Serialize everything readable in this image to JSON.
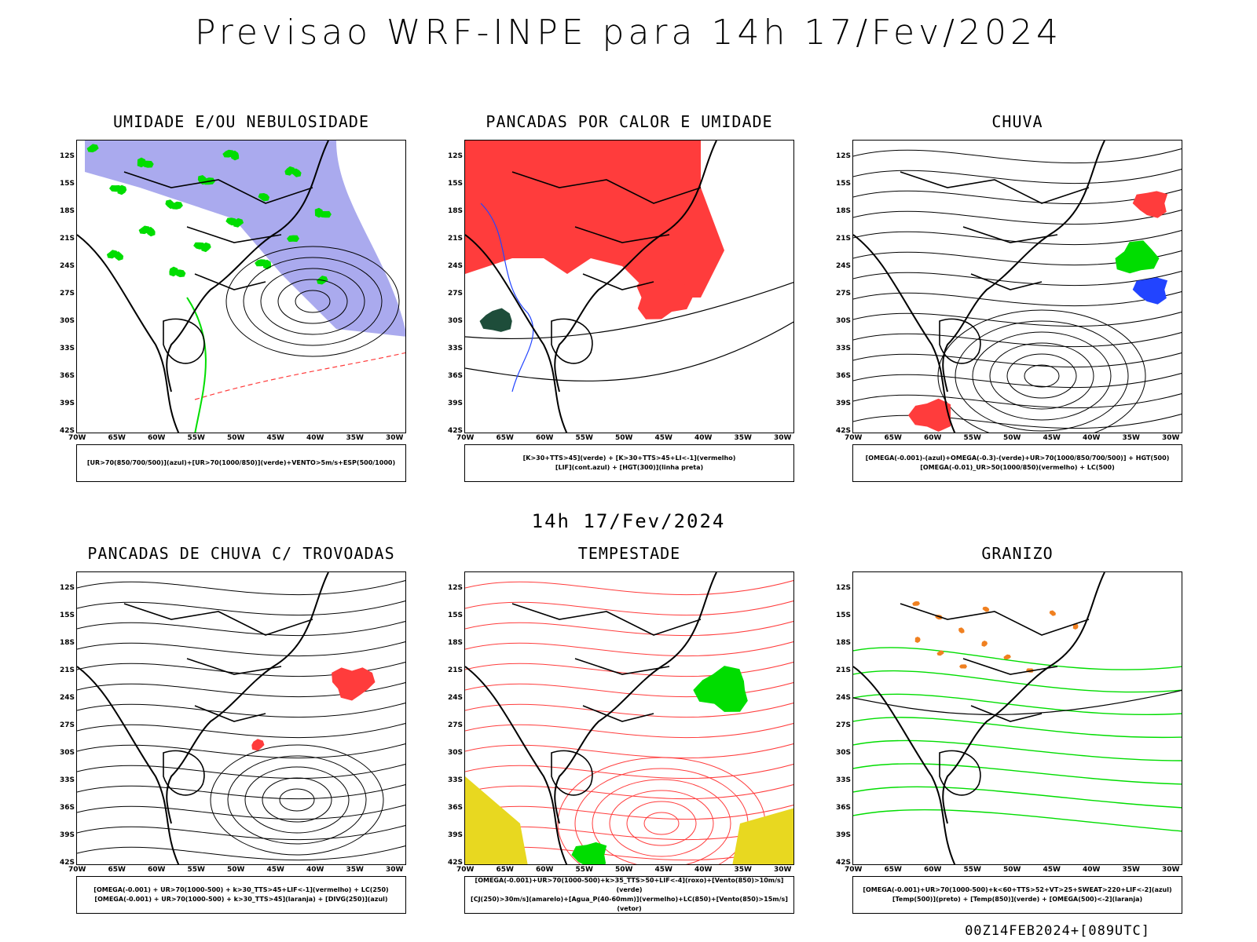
{
  "header": {
    "title": "Previsao WRF-INPE  para 14h 17/Fev/2024"
  },
  "mid_label": "14h 17/Fev/2024",
  "footer": "00Z14FEB2024+[089UTC]",
  "lat_labels": [
    "12S",
    "15S",
    "18S",
    "21S",
    "24S",
    "27S",
    "30S",
    "33S",
    "36S",
    "39S",
    "42S"
  ],
  "lon_labels": [
    "70W",
    "65W",
    "60W",
    "55W",
    "50W",
    "45W",
    "40W",
    "35W",
    "30W"
  ],
  "colors": {
    "blue_fill": "#aaaaee",
    "green": "#00dd00",
    "red": "#ff3c3c",
    "dark_green": "#1e4d3a",
    "yellow": "#e8d820",
    "orange": "#f08020"
  },
  "panels": [
    {
      "title": "UMIDADE E/OU NEBULOSIDADE",
      "caption": [
        "[UR>70(850/700/500)](azul)+[UR>70(1000/850)](verde)+VENTO>5m/s+ESP(500/1000)"
      ]
    },
    {
      "title": "PANCADAS POR CALOR E UMIDADE",
      "caption": [
        "[K>30+TTS>45](verde)  +  [K>30+TTS>45+LI<-1](vermelho)",
        "[LIF](cont.azul)  +  [HGT(300)](linha preta)"
      ]
    },
    {
      "title": "CHUVA",
      "caption": [
        "[OMEGA(-0.001)-(azul)+OMEGA(-0.3)-(verde)+UR>70(1000/850/700/500)]  +  HGT(500)",
        "[OMEGA(-0.01)_UR>50(1000/850)(vermelho)  +  LC(500)"
      ]
    },
    {
      "title": "PANCADAS DE CHUVA C/ TROVOADAS",
      "caption": [
        "[OMEGA(-0.001)  +  UR>70(1000-500)  +  k>30_TTS>45+LIF<-1](vermelho)  +  LC(250)",
        "[OMEGA(-0.001)  +  UR>70(1000-500)  +  k>30_TTS>45](laranja)  +  [DIVG(250)](azul)"
      ]
    },
    {
      "title": "TEMPESTADE",
      "caption": [
        "[OMEGA(-0.001)+UR>70(1000-500)+k>35_TTS>50+LIF<-4](roxo)+[Vento(850)>10m/s](verde)",
        "[CJ(250)>30m/s](amarelo)+[Agua_P(40-60mm)](vermelho)+LC(850)+[Vento(850)>15m/s](vetor)"
      ]
    },
    {
      "title": "GRANIZO",
      "caption": [
        "[OMEGA(-0.001)+UR>70(1000-500)+k<60+TTS>52+VT>25+SWEAT>220+LIF<-2](azul)",
        "[Temp(500)](preto)  +  [Temp(850)](verde)  +  [OMEGA(500)<-2](laranja)"
      ]
    }
  ]
}
